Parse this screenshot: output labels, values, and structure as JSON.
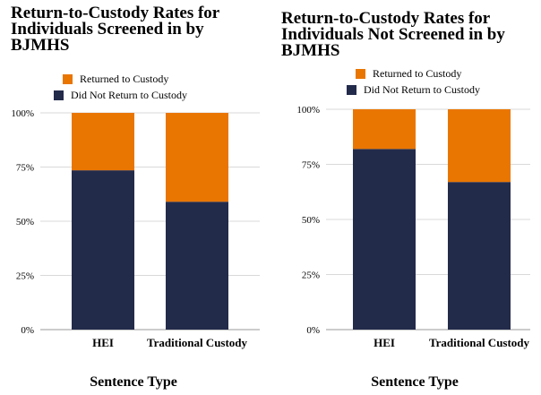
{
  "colors": {
    "returned": "#E97600",
    "not_returned": "#232B4B",
    "grid": "#d9d9d9",
    "text": "#000000"
  },
  "chart_data": [
    {
      "type": "bar",
      "stacked": true,
      "title": "Return-to-Custody Rates for\nIndividuals Screened in by\nBJMHS",
      "xlabel": "Sentence Type",
      "ylabel": "",
      "categories": [
        "HEI",
        "Traditional Custody"
      ],
      "series": [
        {
          "name": "Did Not Return to Custody",
          "values": [
            73.5,
            59
          ]
        },
        {
          "name": "Returned to Custody",
          "values": [
            26.5,
            41
          ]
        }
      ],
      "ylim": [
        0,
        100
      ],
      "yticks": [
        "0%",
        "25%",
        "50%",
        "75%",
        "100%"
      ],
      "grid": true,
      "legend_position": "top"
    },
    {
      "type": "bar",
      "stacked": true,
      "title": "Return-to-Custody Rates for\nIndividuals Not Screened in by\nBJMHS",
      "xlabel": "Sentence Type",
      "ylabel": "",
      "categories": [
        "HEI",
        "Traditional Custody"
      ],
      "series": [
        {
          "name": "Did Not Return to Custody",
          "values": [
            82,
            67
          ]
        },
        {
          "name": "Returned to Custody",
          "values": [
            18,
            33
          ]
        }
      ],
      "ylim": [
        0,
        100
      ],
      "yticks": [
        "0%",
        "25%",
        "50%",
        "75%",
        "100%"
      ],
      "grid": true,
      "legend_position": "top"
    }
  ]
}
